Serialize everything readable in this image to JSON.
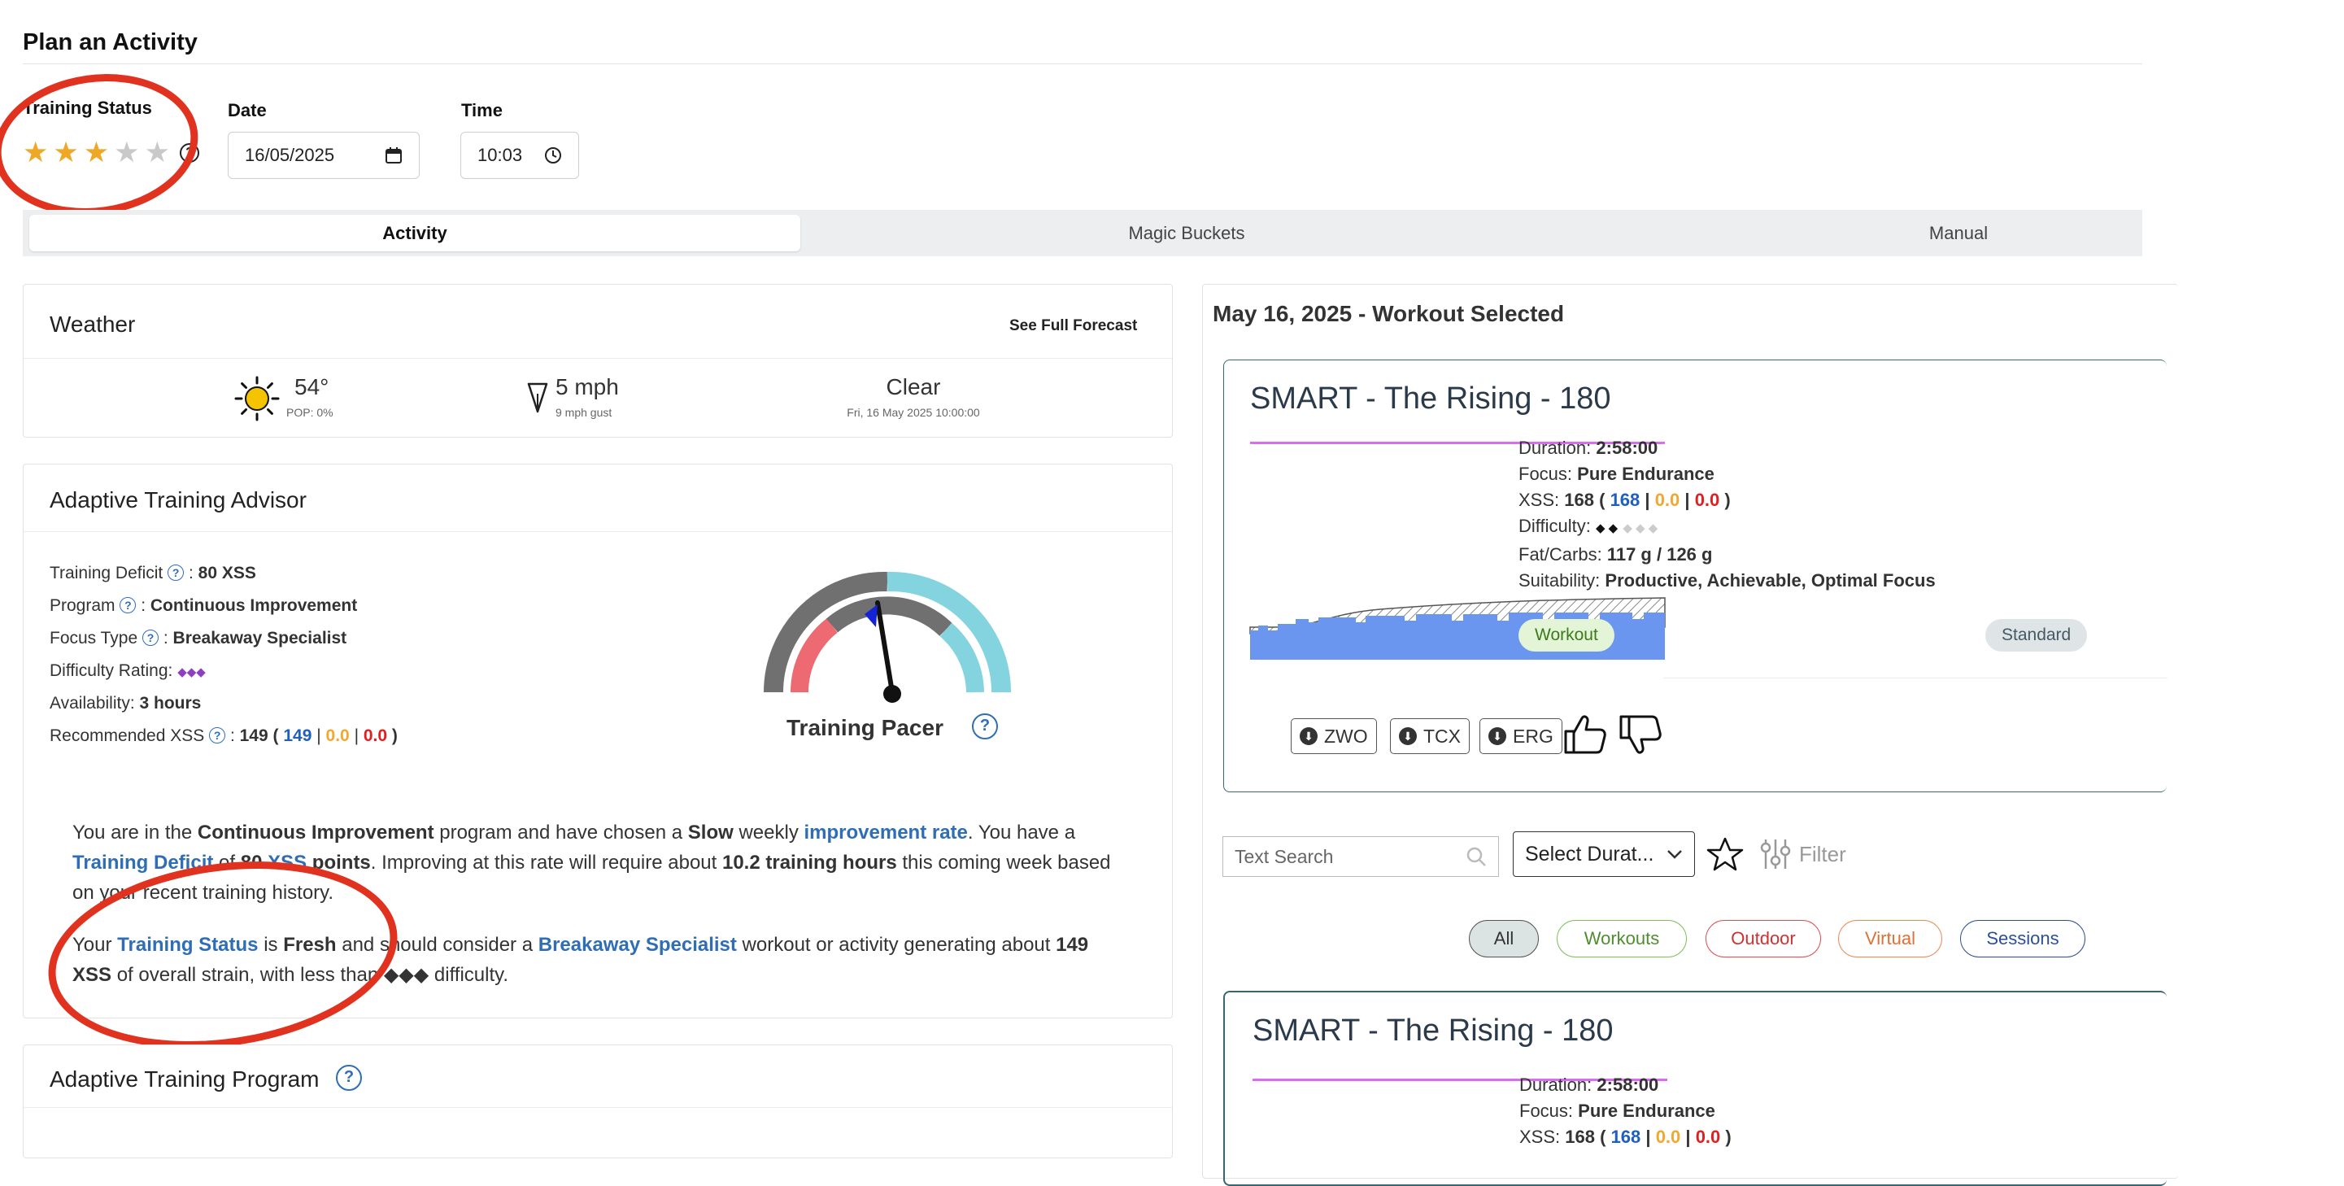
{
  "header": {
    "title": "Plan an Activity"
  },
  "training_status": {
    "label": "Training Status",
    "rating": 3,
    "max_rating": 5,
    "help": "?"
  },
  "date": {
    "label": "Date",
    "value": "16/05/2025"
  },
  "time": {
    "label": "Time",
    "value": "10:03"
  },
  "tabs": [
    {
      "label": "Activity",
      "active": true
    },
    {
      "label": "Magic Buckets",
      "active": false
    },
    {
      "label": "Manual",
      "active": false
    }
  ],
  "weather": {
    "title": "Weather",
    "forecast_link": "See Full Forecast",
    "temp": "54°",
    "pop": "POP: 0%",
    "wind": "5 mph",
    "gust": "9 mph gust",
    "condition": "Clear",
    "timestamp": "Fri, 16 May 2025 10:00:00"
  },
  "advisor": {
    "title": "Adaptive Training Advisor",
    "rows": {
      "deficit_label": "Training Deficit",
      "deficit_value": "80 XSS",
      "program_label": "Program",
      "program_value": "Continuous Improvement",
      "focus_label": "Focus Type",
      "focus_value": "Breakaway Specialist",
      "difficulty_label": "Difficulty Rating:",
      "difficulty_value": "◆◆◆",
      "availability_label": "Availability:",
      "availability_value": "3 hours",
      "rec_label": "Recommended XSS",
      "rec_total": "149",
      "rec_low": "149",
      "rec_high": "0.0",
      "rec_peak": "0.0"
    },
    "pacer_label": "Training Pacer",
    "paragraph1": {
      "t1": "You are in the ",
      "program": "Continuous Improvement",
      "t2": " program and have chosen a ",
      "rate": "Slow",
      "t3": " weekly ",
      "rate_link": "improvement rate",
      "t4": ". You have a ",
      "deficit_link": "Training Deficit",
      "t5": " of ",
      "deficit": "80",
      "xss_link": "XSS",
      "t6": " points",
      "t7": ". Improving at this rate will require about ",
      "hours": "10.2 training hours",
      "t8": " this coming week based on your recent training history."
    },
    "paragraph2": {
      "t1": "Your ",
      "status_link": "Training Status",
      "t2": " is ",
      "status": "Fresh",
      "t3": " and should consider a ",
      "focus_link": "Breakaway Specialist",
      "t4": " workout or activity generating about ",
      "xss": "149 XSS",
      "t5": " of overall strain, with less than ◆◆◆ difficulty."
    }
  },
  "program_card": {
    "title": "Adaptive Training Program"
  },
  "selected": {
    "heading": "May 16, 2025 - Workout Selected",
    "workout": {
      "title": "SMART - The Rising - 180",
      "duration_label": "Duration:",
      "duration": "2:58:00",
      "focus_label": "Focus:",
      "focus": "Pure Endurance",
      "xss_label": "XSS:",
      "xss_total": "168",
      "xss_low": "168",
      "xss_high": "0.0",
      "xss_peak": "0.0",
      "difficulty_label": "Difficulty:",
      "difficulty_on": "◆ ◆",
      "difficulty_off": "◆ ◆ ◆",
      "fatcarb_label": "Fat/Carbs:",
      "fatcarb": "117 g / 126 g",
      "suit_label": "Suitability:",
      "suit": "Productive, Achievable, Optimal Focus",
      "tags": [
        "Workout",
        "Standard"
      ],
      "downloads": [
        "ZWO",
        "TCX",
        "ERG"
      ]
    }
  },
  "search": {
    "placeholder": "Text Search",
    "duration_select": "Select Durat...",
    "filter_label": "Filter",
    "filters": [
      "All",
      "Workouts",
      "Outdoor",
      "Virtual",
      "Sessions"
    ]
  },
  "list_item": {
    "title": "SMART - The Rising - 180",
    "duration_label": "Duration:",
    "duration": "2:58:00",
    "focus_label": "Focus:",
    "focus": "Pure Endurance",
    "xss_label": "XSS:",
    "xss_total": "168",
    "xss_low": "168",
    "xss_high": "0.0",
    "xss_peak": "0.0"
  },
  "colors": {
    "accent_blue": "#2f6eb5",
    "annotation_red": "#e0321e",
    "star": "#eea825",
    "chart_fill": "#6b96ef",
    "workout_line": "#d96cf0"
  },
  "icons": [
    "star-icon",
    "help-icon",
    "calendar-icon",
    "clock-icon",
    "sun-icon",
    "wind-arrow-icon",
    "download-icon",
    "thumbs-up-icon",
    "thumbs-down-icon",
    "search-icon",
    "chevron-down-icon",
    "favorite-star-icon",
    "filter-sliders-icon"
  ]
}
